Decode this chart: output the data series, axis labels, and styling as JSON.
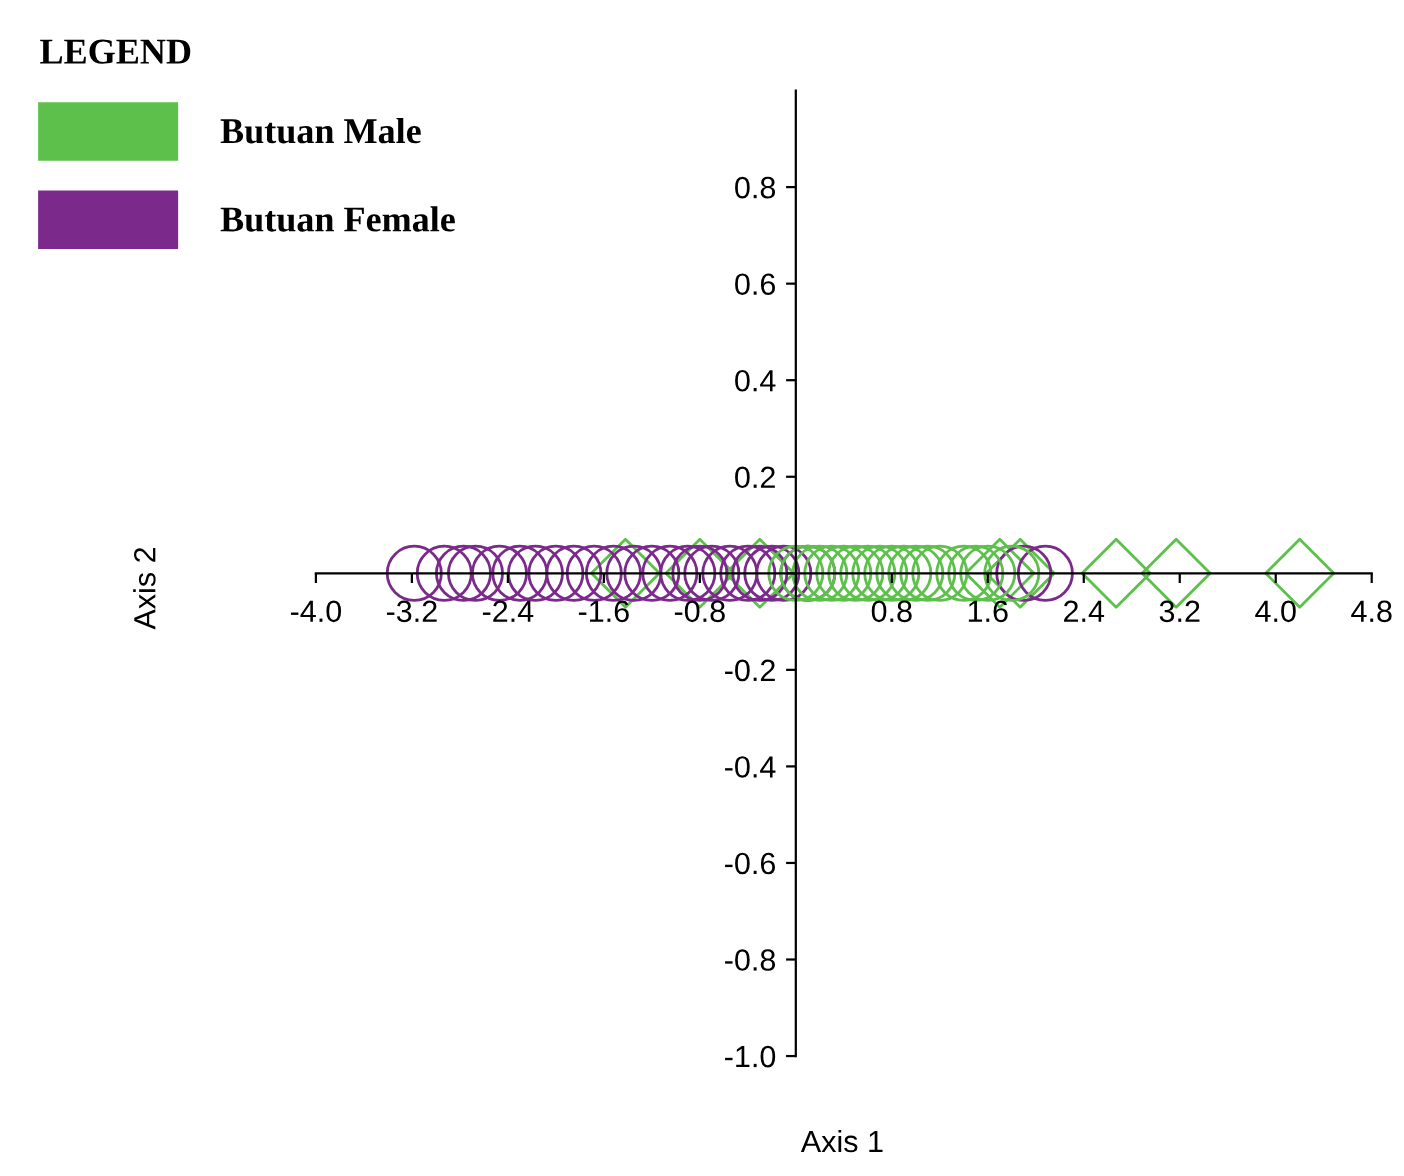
{
  "chart_data": {
    "type": "scatter",
    "xlabel": "Axis 1",
    "ylabel": "Axis 2",
    "legend_title": "LEGEND",
    "legend": "top left",
    "grid": false,
    "xlim": [
      -4.0,
      4.8
    ],
    "ylim": [
      -1.0,
      1.0
    ],
    "xticks": [
      {
        "value": -4,
        "label": "-4.0"
      },
      -3.2,
      -2.4,
      -1.6,
      -0.8,
      {
        "value": 0,
        "label": null
      },
      0.8,
      1.6,
      2.4,
      3.2,
      {
        "value": 4,
        "label": "4.0"
      },
      4.8
    ],
    "yticks": [
      {
        "value": -1,
        "label": "-1.0"
      },
      -0.8,
      -0.6,
      -0.4,
      -0.2,
      {
        "value": 0,
        "label": null
      },
      0.2,
      0.4,
      0.6,
      0.8
    ],
    "series": [
      {
        "name": "Butuan Male",
        "color": "#5cc04a",
        "marker": "diamond",
        "x": [
          -1.42,
          -0.8,
          -0.3,
          1.7,
          1.87,
          2.67,
          3.17,
          4.2
        ],
        "values": [
          0,
          0,
          0,
          0,
          0,
          0,
          0,
          0
        ]
      },
      {
        "name": "Butuan Female",
        "color": "#7b2a8c",
        "marker": "circle",
        "x": [
          -3.18,
          -2.93,
          -2.77,
          -2.67,
          -2.47,
          -2.3,
          -2.17,
          -2.0,
          -1.85,
          -1.68,
          -1.52,
          -1.35,
          -1.2,
          -1.05,
          -0.9,
          -0.8,
          -0.7,
          -0.55,
          -0.4,
          -0.3,
          -0.2,
          -0.1,
          0.1,
          1.9,
          2.08
        ],
        "values": [
          0,
          0,
          0,
          0,
          0,
          0,
          0,
          0,
          0,
          0,
          0,
          0,
          0,
          0,
          0,
          0,
          0,
          0,
          0,
          0,
          0,
          0,
          0,
          0,
          0
        ]
      },
      {
        "color": "#5cc04a",
        "marker": "circle",
        "x": [
          0.0,
          0.1,
          0.2,
          0.3,
          0.4,
          0.5,
          0.6,
          0.7,
          0.8,
          0.9,
          1.0,
          1.1,
          1.2,
          1.4,
          1.5,
          1.6,
          1.8
        ],
        "values": [
          0,
          0,
          0,
          0,
          0,
          0,
          0,
          0,
          0,
          0,
          0,
          0,
          0,
          0,
          0,
          0,
          0
        ]
      }
    ]
  }
}
